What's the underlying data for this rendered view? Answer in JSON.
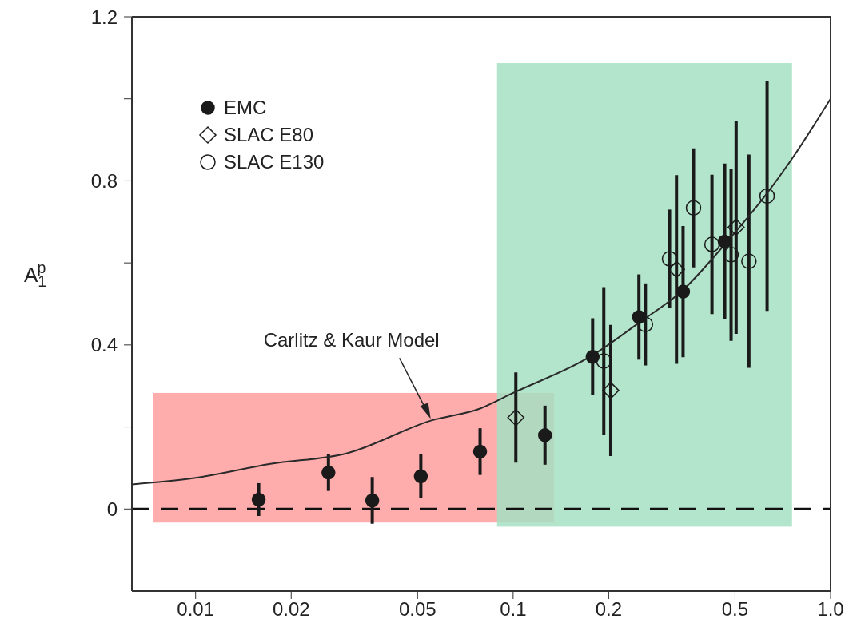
{
  "chart_data": {
    "type": "scatter",
    "ylabel": "A$_{1}$$^{p}$",
    "xlim": [
      0.0063,
      1.0
    ],
    "xticks": [
      0.01,
      0.02,
      0.05,
      0.1,
      0.2,
      0.5,
      {
        "value": 1.0,
        "label": "1.0"
      }
    ],
    "ylim": [
      -0.2,
      1.2
    ],
    "yticks": [
      0,
      {
        "value": 0.2,
        "label": null
      },
      0.4,
      {
        "value": 0.6,
        "label": null
      },
      0.8,
      {
        "value": 1.0,
        "label": null
      },
      1.2
    ],
    "log": "x",
    "legend": "top left",
    "series": [
      {
        "name": "EMC",
        "marker": "circle",
        "color": "#1a1a1a",
        "x": [
          0.0158,
          0.0262,
          0.036,
          0.0512,
          0.0787,
          0.126,
          0.178,
          0.249,
          0.343,
          0.464
        ],
        "values": [
          0.023,
          0.089,
          0.021,
          0.08,
          0.14,
          0.18,
          0.371,
          0.468,
          0.53,
          0.652
        ],
        "errors": [
          0.04,
          0.045,
          0.057,
          0.053,
          0.057,
          0.072,
          0.094,
          0.104,
          0.16,
          0.19
        ]
      },
      {
        "name": "SLAC E80",
        "marker": "diamond",
        "color": "#1a1a1a",
        "x": [
          0.102,
          0.203,
          0.327,
          0.504
        ],
        "values": [
          0.223,
          0.289,
          0.584,
          0.687
        ],
        "errors": [
          0.11,
          0.16,
          0.23,
          0.26
        ]
      },
      {
        "name": "SLAC E130",
        "marker": "circle",
        "color": "#1a1a1a",
        "x": [
          0.193,
          0.261,
          0.311,
          0.37,
          0.423,
          0.486,
          0.553,
          0.631
        ],
        "values": [
          0.361,
          0.45,
          0.61,
          0.734,
          0.645,
          0.62,
          0.604,
          0.763
        ],
        "errors": [
          0.18,
          0.1,
          0.12,
          0.145,
          0.17,
          0.21,
          0.26,
          0.28
        ]
      },
      {
        "type": "line",
        "marker": "none",
        "line_style": "solid",
        "color": "#2a2a2a",
        "x": [
          0.0063,
          0.01,
          0.0172,
          0.03,
          0.0553,
          0.0787,
          0.1,
          0.178,
          0.249,
          0.343,
          0.464,
          0.631,
          0.75,
          1.0
        ],
        "values": [
          0.06,
          0.076,
          0.11,
          0.136,
          0.216,
          0.245,
          0.283,
          0.375,
          0.454,
          0.534,
          0.645,
          0.77,
          0.85,
          1.0
        ]
      }
    ],
    "ref_lines": [
      {
        "axis": "y",
        "value": 0,
        "label": null,
        "color": "#111111",
        "line_style": "dashed"
      }
    ],
    "annotations": [
      {
        "text": "Carlitz & Kaur Model",
        "x": 0.0553,
        "y": 0.216
      }
    ]
  }
}
